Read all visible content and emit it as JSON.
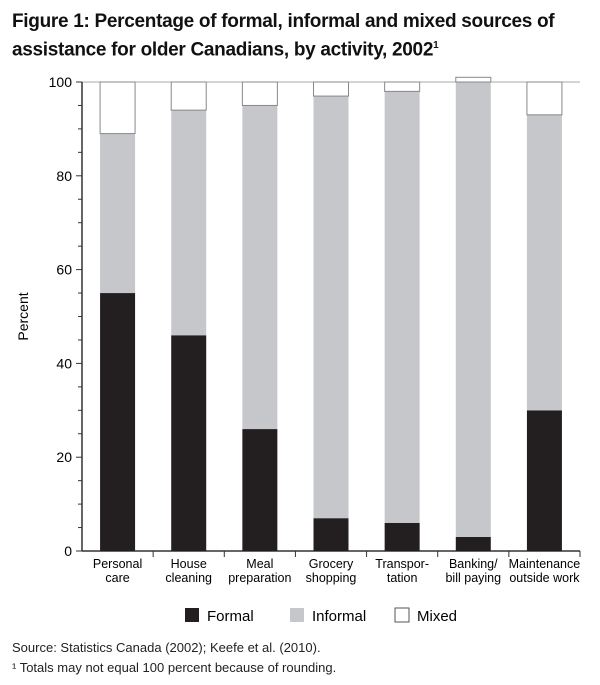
{
  "chart_data": {
    "type": "bar",
    "stacked": true,
    "title": "Figure 1: Percentage of formal, informal and mixed sources of assistance for older Canadians, by activity, 2002",
    "title_superscript": "1",
    "ylabel": "Percent",
    "xlabel": "",
    "ylim": [
      0,
      100
    ],
    "yticks": [
      0,
      20,
      40,
      60,
      80,
      100
    ],
    "grid": "horizontal at 100",
    "legend_placement": "bottom",
    "categories": [
      [
        "Personal",
        "care"
      ],
      [
        "House",
        "cleaning"
      ],
      [
        "Meal",
        "preparation"
      ],
      [
        "Grocery",
        "shopping"
      ],
      [
        "Transpor-",
        "tation"
      ],
      [
        "Banking/",
        "bill paying"
      ],
      [
        "Maintenance",
        "outside work"
      ]
    ],
    "series": [
      {
        "name": "Formal",
        "color": "#231f20",
        "values": [
          55,
          46,
          26,
          7,
          6,
          3,
          30
        ]
      },
      {
        "name": "Informal",
        "color": "#c6c7ca",
        "values": [
          34,
          48,
          69,
          90,
          92,
          97,
          63
        ]
      },
      {
        "name": "Mixed",
        "color": "#ffffff",
        "values": [
          11,
          6,
          5,
          3,
          2,
          1,
          7
        ]
      }
    ]
  },
  "notes": {
    "source": "Source: Statistics Canada (2002); Keefe et al. (2010).",
    "footnote": "¹ Totals may not equal 100 percent because of rounding."
  }
}
